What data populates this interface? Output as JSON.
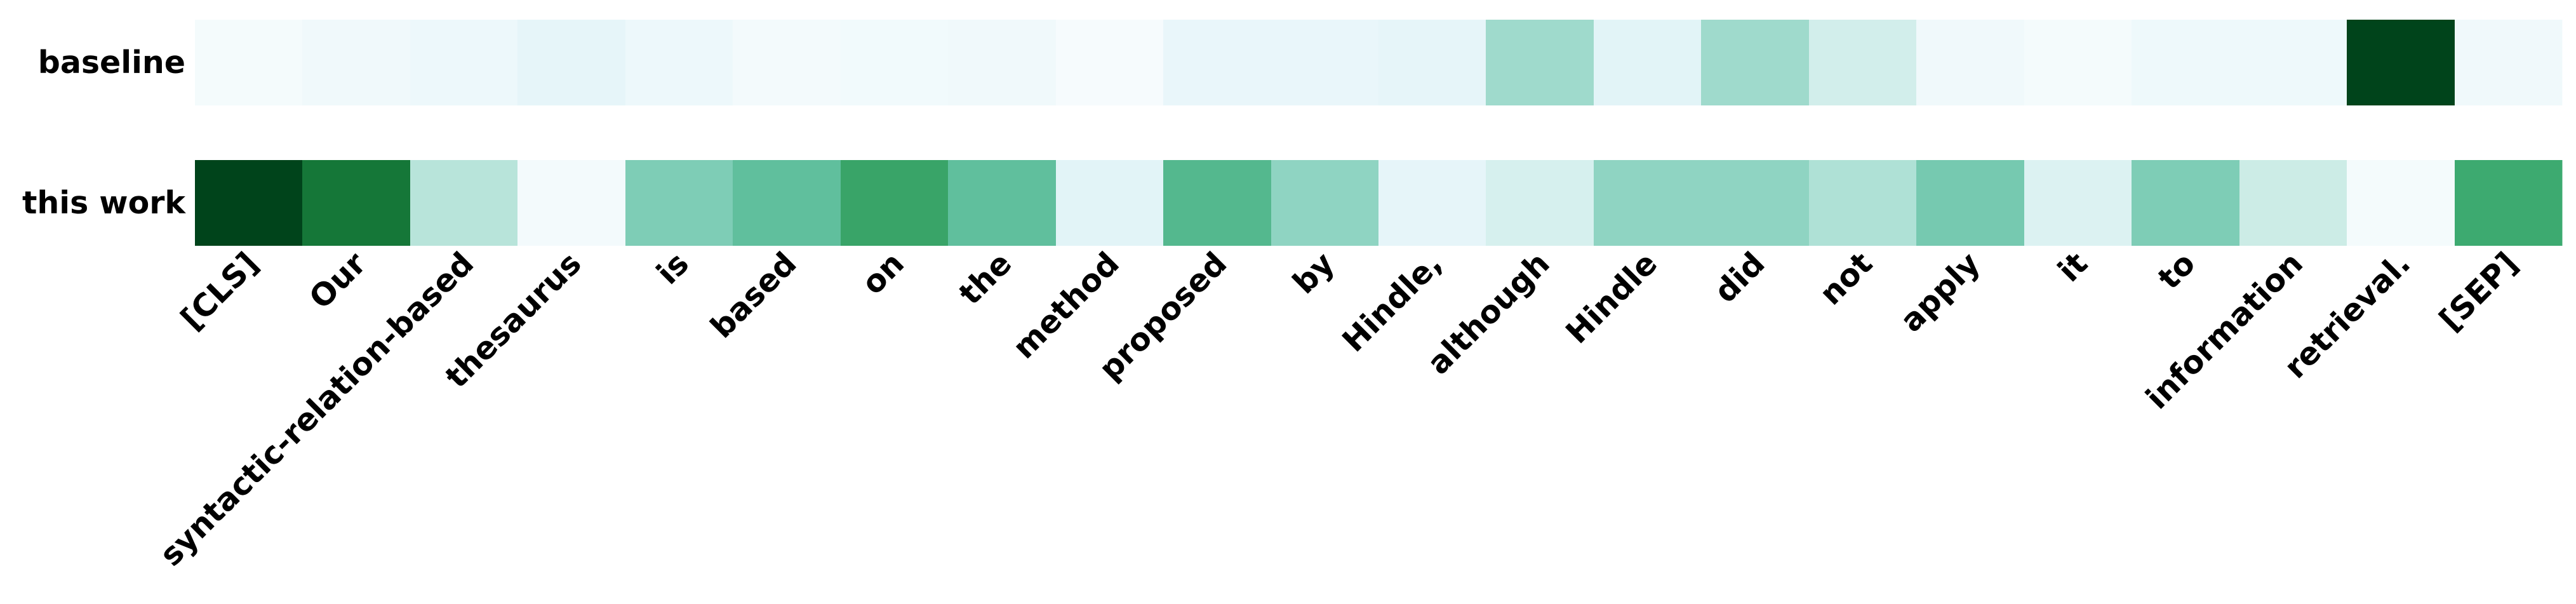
{
  "chart_data": {
    "type": "heatmap",
    "title": "",
    "xlabel": "",
    "ylabel": "",
    "colormap": "BuGn",
    "colormap_colors": [
      "#f7fcfd",
      "#e5f5f9",
      "#ccece6",
      "#99d8c9",
      "#66c2a4",
      "#41ae76",
      "#238b45",
      "#005824",
      "#00441b"
    ],
    "value_range": [
      0,
      1
    ],
    "grid": false,
    "legend": "none",
    "rows": [
      "baseline",
      "this work"
    ],
    "columns": [
      "[CLS]",
      "Our",
      "syntactic-relation-based",
      "thesaurus",
      "is",
      "based",
      "on",
      "the",
      "method",
      "proposed",
      "by",
      "Hindle,",
      "although",
      "Hindle",
      "did",
      "not",
      "apply",
      "it",
      "to",
      "information",
      "retrieval.",
      "[SEP]"
    ],
    "values": [
      [
        0.02,
        0.05,
        0.07,
        0.12,
        0.07,
        0.03,
        0.04,
        0.05,
        0.01,
        0.1,
        0.1,
        0.12,
        0.36,
        0.14,
        0.36,
        0.22,
        0.05,
        0.02,
        0.06,
        0.06,
        1.0,
        0.05
      ],
      [
        1.0,
        0.8,
        0.3,
        0.03,
        0.44,
        0.52,
        0.66,
        0.52,
        0.14,
        0.56,
        0.4,
        0.12,
        0.2,
        0.4,
        0.4,
        0.32,
        0.46,
        0.17,
        0.44,
        0.25,
        0.02,
        0.64
      ]
    ]
  }
}
